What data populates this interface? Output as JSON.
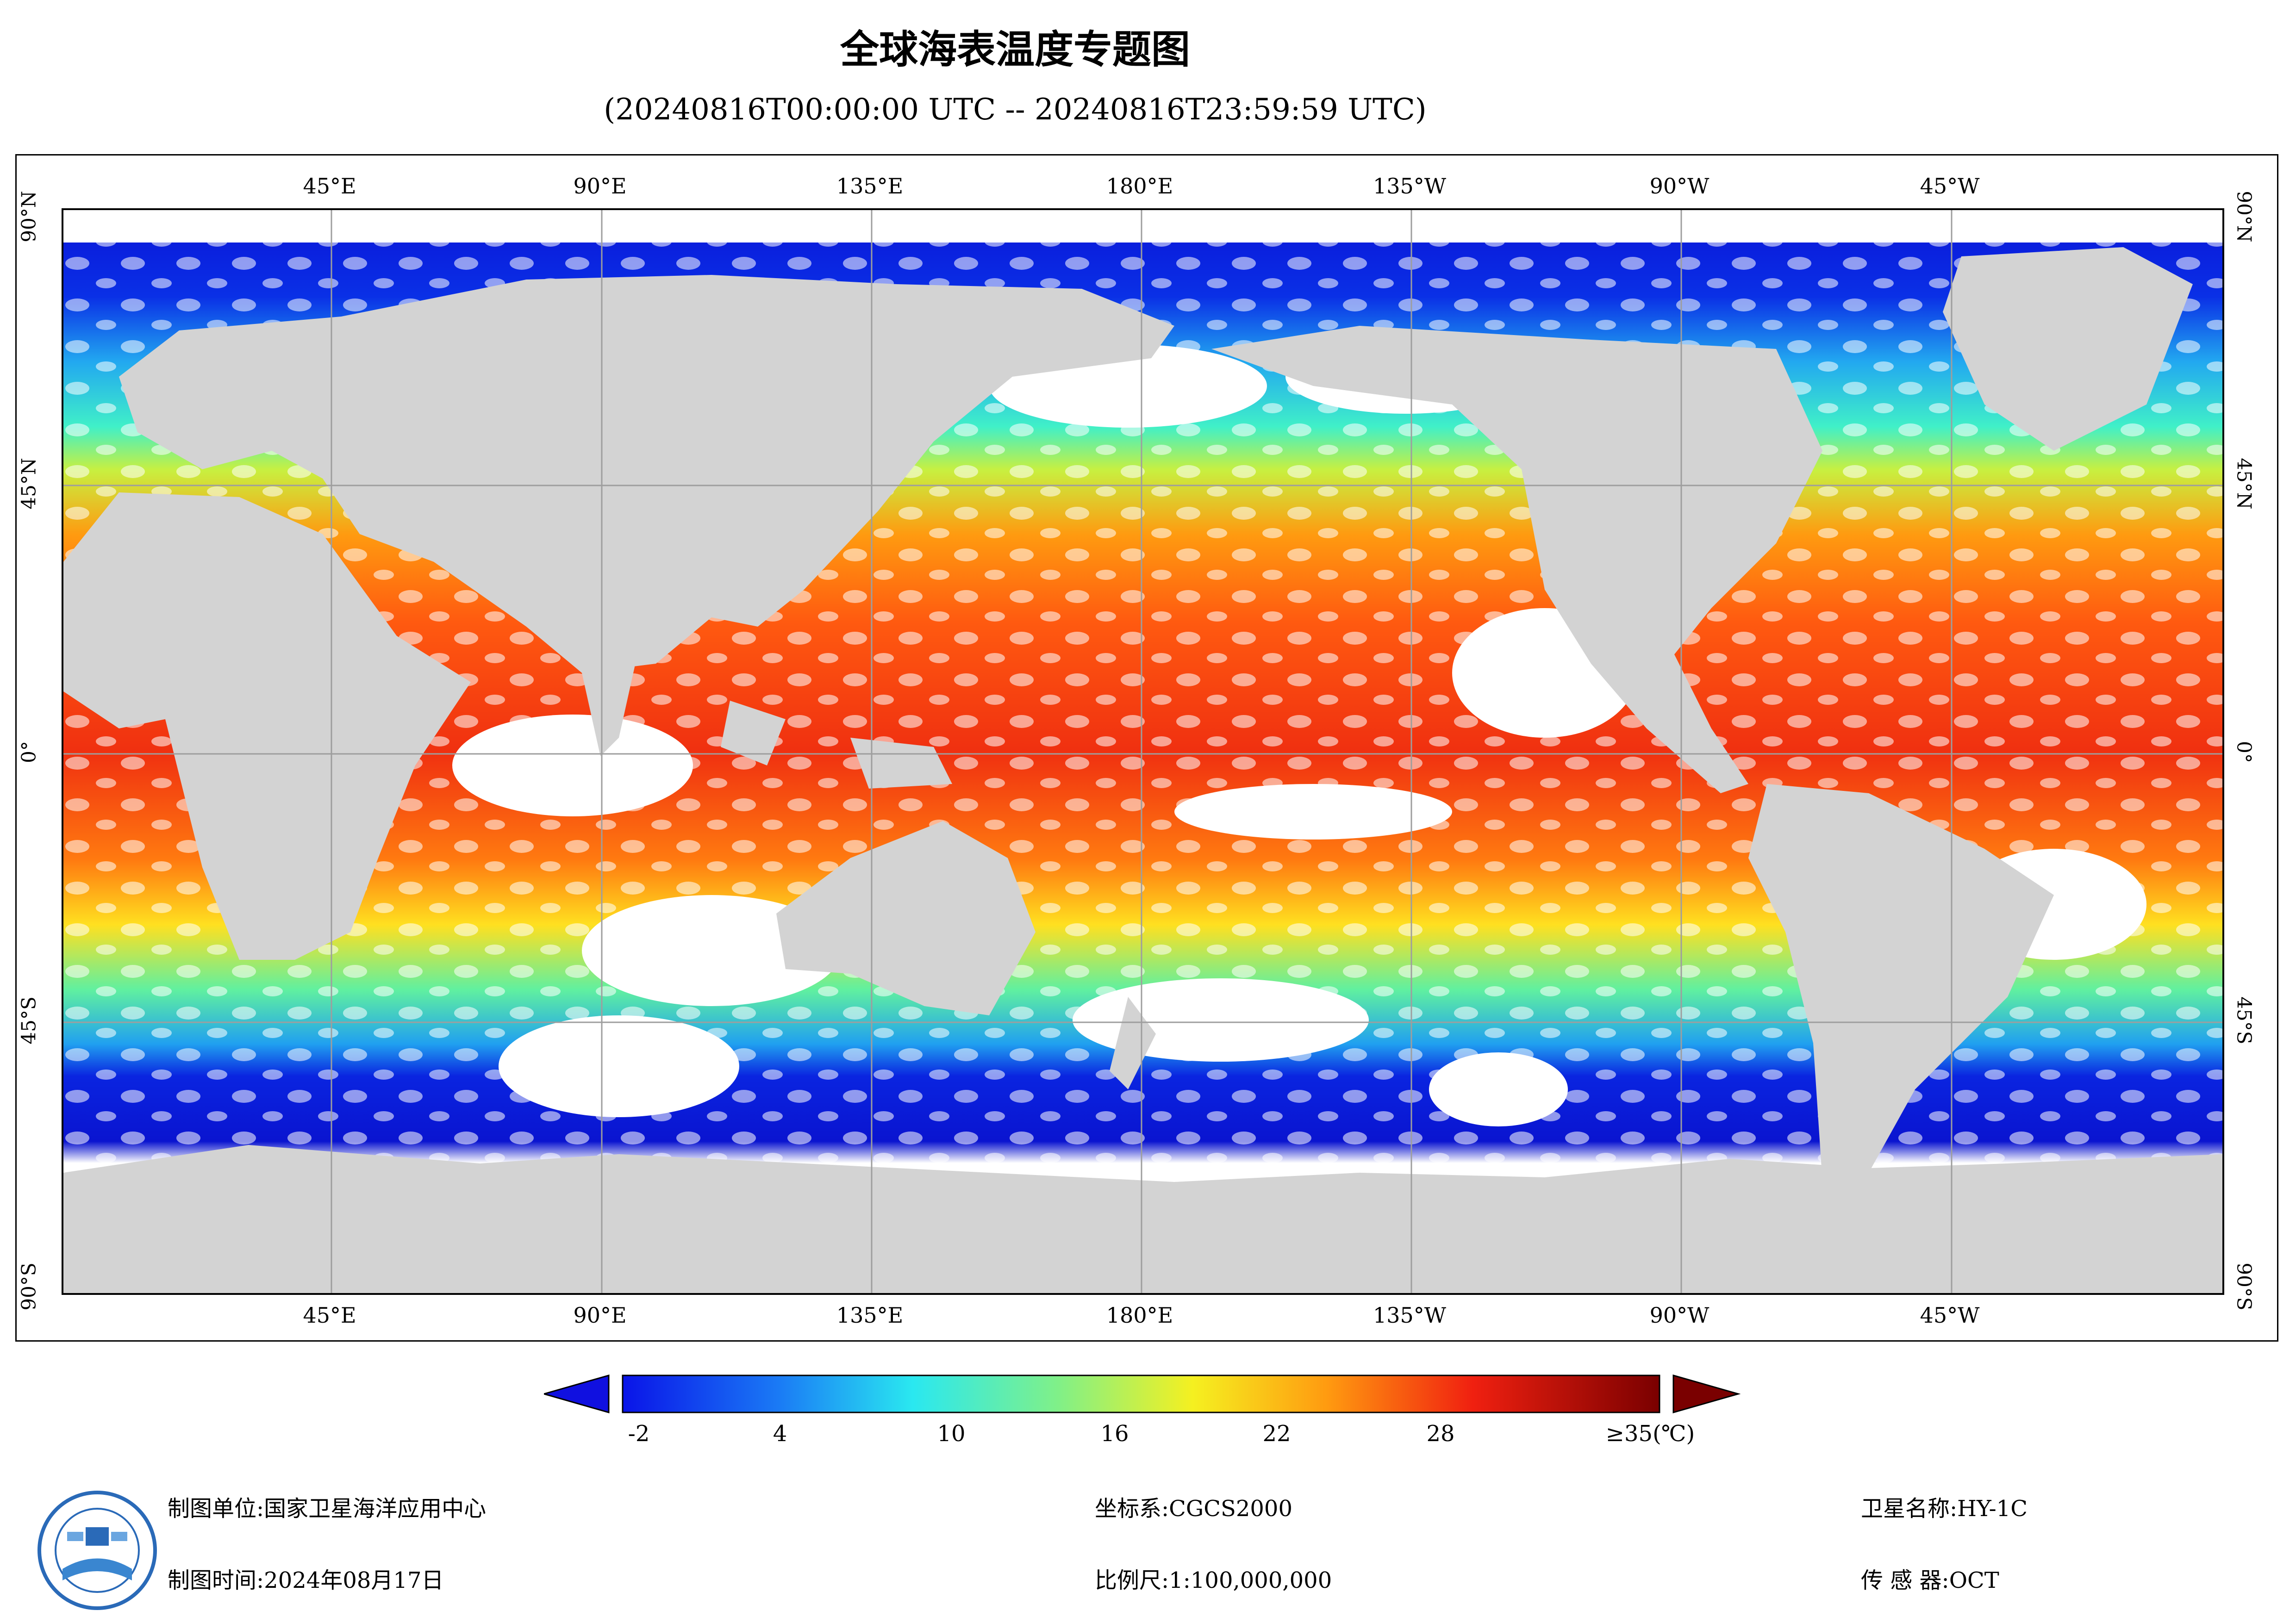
{
  "title": "全球海表温度专题图",
  "subtitle": "(20240816T00:00:00 UTC -- 20240816T23:59:59 UTC)",
  "map": {
    "lon_ticks_top": [
      "45°E",
      "90°E",
      "135°E",
      "180°E",
      "135°W",
      "90°W",
      "45°W"
    ],
    "lon_ticks_bottom": [
      "45°E",
      "90°E",
      "135°E",
      "180°E",
      "135°W",
      "90°W",
      "45°W"
    ],
    "lat_ticks": [
      "90°N",
      "45°N",
      "0°",
      "45°S",
      "90°S"
    ],
    "colors": {
      "land": "#d3d3d3",
      "cloud_gap": "#ffffff",
      "grid": "#9e9e9e"
    }
  },
  "colorbar": {
    "labels": [
      "-2",
      "4",
      "10",
      "16",
      "22",
      "28",
      "≥35(℃)"
    ],
    "min": -2,
    "max": 35,
    "unit": "℃",
    "under_color": "#1010e0",
    "over_color": "#7a0000"
  },
  "footer": {
    "unit_label": "制图单位:国家卫星海洋应用中心",
    "time_label": "制图时间:2024年08月17日",
    "crs_label": "坐标系:CGCS2000",
    "scale_label": "比例尺:1:100,000,000",
    "satellite_label": "卫星名称:HY-1C",
    "sensor_label": "传 感 器:OCT"
  }
}
